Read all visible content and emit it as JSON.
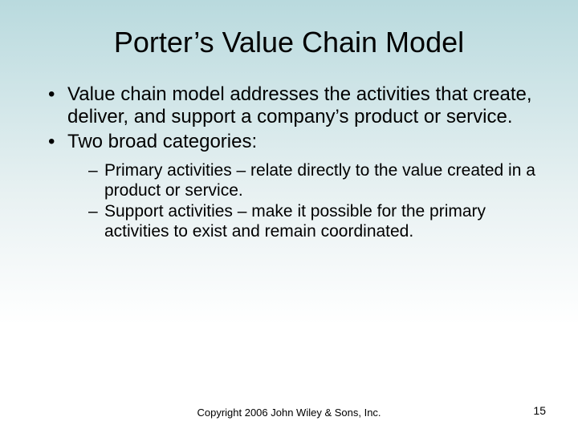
{
  "title": {
    "text": "Porter’s Value Chain Model",
    "fontsize": 36,
    "fontweight": "400",
    "color": "#000000"
  },
  "bullets": {
    "fontsize": 24,
    "lineheight": 1.18,
    "color": "#000000",
    "items": [
      "Value chain model addresses the activities that create, deliver, and support a company’s product or service.",
      "Two broad categories:"
    ],
    "sub": {
      "fontsize": 21,
      "lineheight": 1.18,
      "items": [
        "Primary activities – relate directly to the value created in a product or service.",
        "Support activities – make it possible for the primary activities to exist and remain coordinated."
      ]
    }
  },
  "footer": {
    "text": "Copyright 2006 John Wiley & Sons, Inc.",
    "fontsize": 13,
    "color": "#000000"
  },
  "pagenum": {
    "text": "15",
    "fontsize": 14,
    "color": "#000000"
  },
  "background": {
    "gradient_top": "#b9dade",
    "gradient_mid": "#e8f1f2",
    "gradient_bottom": "#ffffff"
  }
}
